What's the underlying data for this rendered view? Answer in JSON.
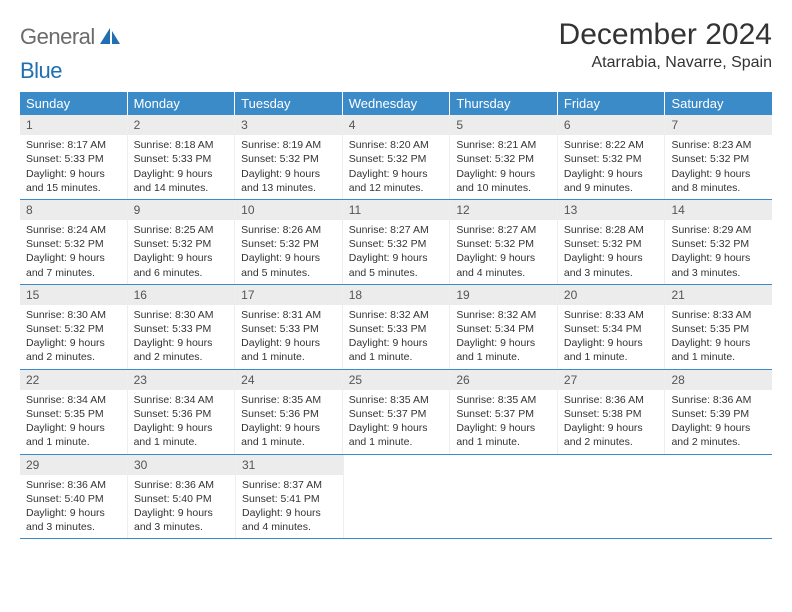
{
  "logo": {
    "text1": "General",
    "text2": "Blue"
  },
  "title": "December 2024",
  "location": "Atarrabia, Navarre, Spain",
  "colors": {
    "header_bg": "#3b8bc9",
    "header_text": "#ffffff",
    "daynum_bg": "#ececec",
    "border": "#3b8bc9",
    "logo_blue": "#1f6fb2"
  },
  "weekdays": [
    "Sunday",
    "Monday",
    "Tuesday",
    "Wednesday",
    "Thursday",
    "Friday",
    "Saturday"
  ],
  "weeks": [
    [
      {
        "n": "1",
        "sr": "Sunrise: 8:17 AM",
        "ss": "Sunset: 5:33 PM",
        "dl": "Daylight: 9 hours and 15 minutes."
      },
      {
        "n": "2",
        "sr": "Sunrise: 8:18 AM",
        "ss": "Sunset: 5:33 PM",
        "dl": "Daylight: 9 hours and 14 minutes."
      },
      {
        "n": "3",
        "sr": "Sunrise: 8:19 AM",
        "ss": "Sunset: 5:32 PM",
        "dl": "Daylight: 9 hours and 13 minutes."
      },
      {
        "n": "4",
        "sr": "Sunrise: 8:20 AM",
        "ss": "Sunset: 5:32 PM",
        "dl": "Daylight: 9 hours and 12 minutes."
      },
      {
        "n": "5",
        "sr": "Sunrise: 8:21 AM",
        "ss": "Sunset: 5:32 PM",
        "dl": "Daylight: 9 hours and 10 minutes."
      },
      {
        "n": "6",
        "sr": "Sunrise: 8:22 AM",
        "ss": "Sunset: 5:32 PM",
        "dl": "Daylight: 9 hours and 9 minutes."
      },
      {
        "n": "7",
        "sr": "Sunrise: 8:23 AM",
        "ss": "Sunset: 5:32 PM",
        "dl": "Daylight: 9 hours and 8 minutes."
      }
    ],
    [
      {
        "n": "8",
        "sr": "Sunrise: 8:24 AM",
        "ss": "Sunset: 5:32 PM",
        "dl": "Daylight: 9 hours and 7 minutes."
      },
      {
        "n": "9",
        "sr": "Sunrise: 8:25 AM",
        "ss": "Sunset: 5:32 PM",
        "dl": "Daylight: 9 hours and 6 minutes."
      },
      {
        "n": "10",
        "sr": "Sunrise: 8:26 AM",
        "ss": "Sunset: 5:32 PM",
        "dl": "Daylight: 9 hours and 5 minutes."
      },
      {
        "n": "11",
        "sr": "Sunrise: 8:27 AM",
        "ss": "Sunset: 5:32 PM",
        "dl": "Daylight: 9 hours and 5 minutes."
      },
      {
        "n": "12",
        "sr": "Sunrise: 8:27 AM",
        "ss": "Sunset: 5:32 PM",
        "dl": "Daylight: 9 hours and 4 minutes."
      },
      {
        "n": "13",
        "sr": "Sunrise: 8:28 AM",
        "ss": "Sunset: 5:32 PM",
        "dl": "Daylight: 9 hours and 3 minutes."
      },
      {
        "n": "14",
        "sr": "Sunrise: 8:29 AM",
        "ss": "Sunset: 5:32 PM",
        "dl": "Daylight: 9 hours and 3 minutes."
      }
    ],
    [
      {
        "n": "15",
        "sr": "Sunrise: 8:30 AM",
        "ss": "Sunset: 5:32 PM",
        "dl": "Daylight: 9 hours and 2 minutes."
      },
      {
        "n": "16",
        "sr": "Sunrise: 8:30 AM",
        "ss": "Sunset: 5:33 PM",
        "dl": "Daylight: 9 hours and 2 minutes."
      },
      {
        "n": "17",
        "sr": "Sunrise: 8:31 AM",
        "ss": "Sunset: 5:33 PM",
        "dl": "Daylight: 9 hours and 1 minute."
      },
      {
        "n": "18",
        "sr": "Sunrise: 8:32 AM",
        "ss": "Sunset: 5:33 PM",
        "dl": "Daylight: 9 hours and 1 minute."
      },
      {
        "n": "19",
        "sr": "Sunrise: 8:32 AM",
        "ss": "Sunset: 5:34 PM",
        "dl": "Daylight: 9 hours and 1 minute."
      },
      {
        "n": "20",
        "sr": "Sunrise: 8:33 AM",
        "ss": "Sunset: 5:34 PM",
        "dl": "Daylight: 9 hours and 1 minute."
      },
      {
        "n": "21",
        "sr": "Sunrise: 8:33 AM",
        "ss": "Sunset: 5:35 PM",
        "dl": "Daylight: 9 hours and 1 minute."
      }
    ],
    [
      {
        "n": "22",
        "sr": "Sunrise: 8:34 AM",
        "ss": "Sunset: 5:35 PM",
        "dl": "Daylight: 9 hours and 1 minute."
      },
      {
        "n": "23",
        "sr": "Sunrise: 8:34 AM",
        "ss": "Sunset: 5:36 PM",
        "dl": "Daylight: 9 hours and 1 minute."
      },
      {
        "n": "24",
        "sr": "Sunrise: 8:35 AM",
        "ss": "Sunset: 5:36 PM",
        "dl": "Daylight: 9 hours and 1 minute."
      },
      {
        "n": "25",
        "sr": "Sunrise: 8:35 AM",
        "ss": "Sunset: 5:37 PM",
        "dl": "Daylight: 9 hours and 1 minute."
      },
      {
        "n": "26",
        "sr": "Sunrise: 8:35 AM",
        "ss": "Sunset: 5:37 PM",
        "dl": "Daylight: 9 hours and 1 minute."
      },
      {
        "n": "27",
        "sr": "Sunrise: 8:36 AM",
        "ss": "Sunset: 5:38 PM",
        "dl": "Daylight: 9 hours and 2 minutes."
      },
      {
        "n": "28",
        "sr": "Sunrise: 8:36 AM",
        "ss": "Sunset: 5:39 PM",
        "dl": "Daylight: 9 hours and 2 minutes."
      }
    ],
    [
      {
        "n": "29",
        "sr": "Sunrise: 8:36 AM",
        "ss": "Sunset: 5:40 PM",
        "dl": "Daylight: 9 hours and 3 minutes."
      },
      {
        "n": "30",
        "sr": "Sunrise: 8:36 AM",
        "ss": "Sunset: 5:40 PM",
        "dl": "Daylight: 9 hours and 3 minutes."
      },
      {
        "n": "31",
        "sr": "Sunrise: 8:37 AM",
        "ss": "Sunset: 5:41 PM",
        "dl": "Daylight: 9 hours and 4 minutes."
      },
      null,
      null,
      null,
      null
    ]
  ]
}
